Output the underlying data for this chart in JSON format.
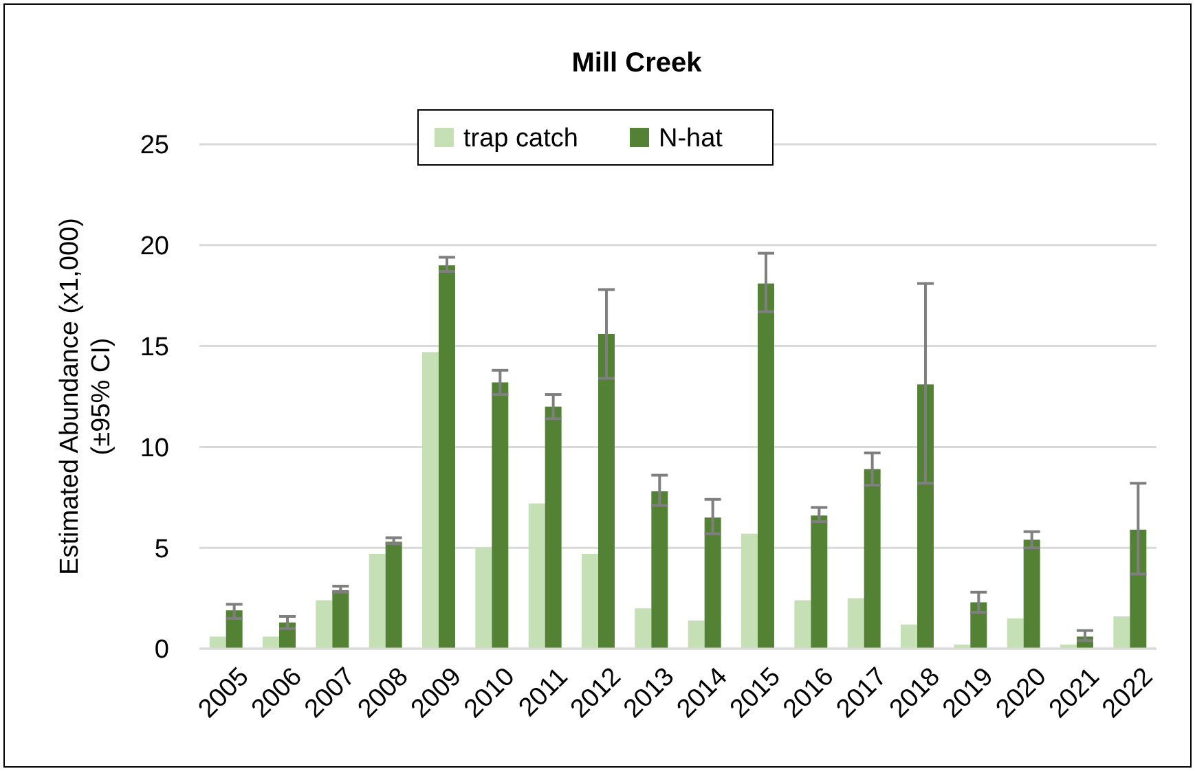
{
  "chart_data": {
    "type": "bar",
    "title": "Mill Creek",
    "ylabel": "Estimated Abundance (x1,000)\n(±95% CI)",
    "categories": [
      "2005",
      "2006",
      "2007",
      "2008",
      "2009",
      "2010",
      "2011",
      "2012",
      "2013",
      "2014",
      "2015",
      "2016",
      "2017",
      "2018",
      "2019",
      "2020",
      "2021",
      "2022"
    ],
    "series": [
      {
        "name": "trap catch",
        "color": "#c5e0b4",
        "values": [
          0.6,
          0.6,
          2.4,
          4.7,
          14.7,
          5.0,
          7.2,
          4.7,
          2.0,
          1.4,
          5.7,
          2.4,
          2.5,
          1.2,
          0.2,
          1.5,
          0.2,
          1.6
        ]
      },
      {
        "name": "N-hat",
        "color": "#548235",
        "values": [
          1.9,
          1.3,
          2.9,
          5.3,
          19.0,
          13.2,
          12.0,
          15.6,
          7.8,
          6.5,
          18.1,
          6.6,
          8.9,
          13.1,
          2.3,
          5.4,
          0.6,
          5.9
        ],
        "errors": [
          [
            1.5,
            2.2
          ],
          [
            1.0,
            1.6
          ],
          [
            2.8,
            3.1
          ],
          [
            5.2,
            5.5
          ],
          [
            18.7,
            19.4
          ],
          [
            12.6,
            13.8
          ],
          [
            11.4,
            12.6
          ],
          [
            13.4,
            17.8
          ],
          [
            7.1,
            8.6
          ],
          [
            5.7,
            7.4
          ],
          [
            16.7,
            19.6
          ],
          [
            6.3,
            7.0
          ],
          [
            8.1,
            9.7
          ],
          [
            8.2,
            18.1
          ],
          [
            1.8,
            2.8
          ],
          [
            5.0,
            5.8
          ],
          [
            0.4,
            0.9
          ],
          [
            3.7,
            8.2
          ]
        ]
      }
    ],
    "ylim": [
      0,
      25
    ],
    "yticks": [
      0,
      5,
      10,
      15,
      20,
      25
    ],
    "grid": "y",
    "legend": "top"
  }
}
